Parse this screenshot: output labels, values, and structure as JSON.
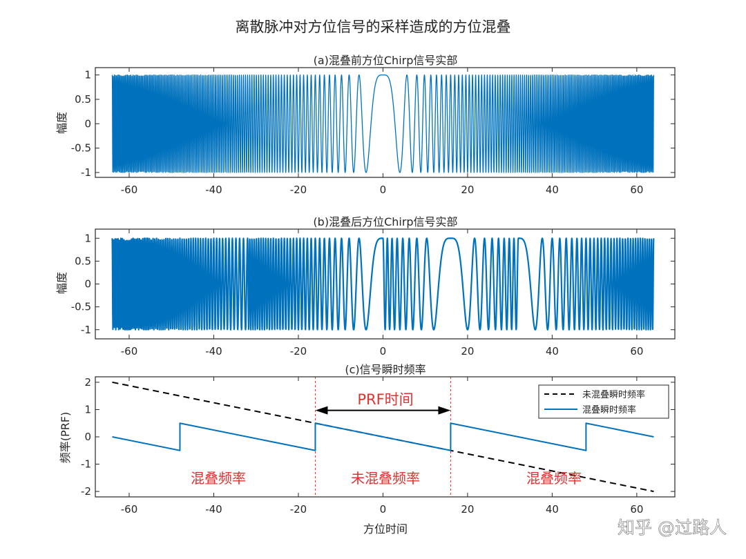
{
  "figure": {
    "title": "离散脉冲对方位信号的采样造成的方位混叠",
    "watermark": "知乎 @过路人"
  },
  "colors": {
    "signal": "#0072bd",
    "dashed": "#000000",
    "marker": "#e0312e",
    "axes": "#262626"
  },
  "chart_data": [
    {
      "type": "line",
      "title": "(a)混叠前方位Chirp信号实部",
      "xlabel": "",
      "ylabel": "幅度",
      "xlim": [
        -68,
        69
      ],
      "ylim": [
        -1.1,
        1.15
      ],
      "xticks": [
        -60,
        -40,
        -20,
        0,
        20,
        40,
        60
      ],
      "yticks": [
        1,
        0.5,
        0,
        -0.5,
        -1
      ],
      "ytick_labels": [
        "1",
        "0.5",
        "0",
        "-0.5",
        "-1"
      ],
      "grid": false,
      "series": [
        {
          "function": "cos(pi*t^2/16)",
          "t_range": [
            -64,
            64
          ],
          "color": "#0072bd"
        }
      ]
    },
    {
      "type": "line",
      "title": "(b)混叠后方位Chirp信号实部",
      "xlabel": "",
      "ylabel": "幅度",
      "xlim": [
        -68,
        69
      ],
      "ylim": [
        -1.2,
        1.2
      ],
      "xticks": [
        -60,
        -40,
        -20,
        0,
        20,
        40,
        60
      ],
      "yticks": [
        1,
        0.5,
        0,
        -0.5,
        -1
      ],
      "ytick_labels": [
        "1",
        "0.5",
        "0",
        "-0.5",
        "-1"
      ],
      "grid": false,
      "series": [
        {
          "function": "cos(pi*t^2/16) sampled at PRF=1, aliased",
          "t_range": [
            -64,
            64
          ],
          "color": "#0072bd"
        }
      ]
    },
    {
      "type": "line",
      "title": "(c)信号瞬时频率",
      "xlabel": "方位时间",
      "ylabel": "频率(PRF)",
      "xlim": [
        -68,
        69
      ],
      "ylim": [
        -2.2,
        2.2
      ],
      "xticks": [
        -60,
        -40,
        -20,
        0,
        20,
        40,
        60
      ],
      "yticks": [
        2,
        1,
        0,
        -1,
        -2
      ],
      "ytick_labels": [
        "2",
        "1",
        "0",
        "-1",
        "-2"
      ],
      "grid": false,
      "legend_position": "top-right",
      "series": [
        {
          "name": "未混叠瞬时频率",
          "style": "dashed",
          "color": "#000000",
          "x": [
            -64,
            64
          ],
          "y": [
            2,
            -2
          ]
        },
        {
          "name": "混叠瞬时频率",
          "style": "solid",
          "color": "#0072bd",
          "x": [
            -64,
            -48,
            -48,
            -16,
            -16,
            16,
            16,
            48,
            48,
            64
          ],
          "y": [
            0,
            -0.5,
            0.5,
            -0.5,
            0.5,
            -0.5,
            0.5,
            -0.5,
            0.5,
            0
          ]
        }
      ],
      "vlines": [
        -16,
        16
      ],
      "annotations": {
        "prf_label": "PRF时间",
        "arrow_from": -16,
        "arrow_to": 16,
        "regions": [
          {
            "label": "混叠频率",
            "x": -47.5
          },
          {
            "label": "未混叠频率",
            "x": 0
          },
          {
            "label": "混叠频率",
            "x": 47.5
          }
        ]
      }
    }
  ]
}
